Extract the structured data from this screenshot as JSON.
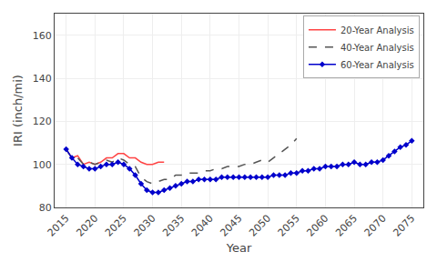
{
  "chart_data": {
    "type": "line",
    "xlabel": "Year",
    "ylabel": "IRI (inch/mi)",
    "xlim": [
      2013,
      2077
    ],
    "ylim": [
      80,
      170
    ],
    "xticks": [
      2015,
      2020,
      2025,
      2030,
      2035,
      2040,
      2045,
      2050,
      2055,
      2060,
      2065,
      2070,
      2075
    ],
    "yticks": [
      80,
      100,
      120,
      140,
      160
    ],
    "grid": true,
    "legend": "upper right",
    "series": [
      {
        "name": "20-Year Analysis",
        "color": "#ff4444",
        "line_style": "solid",
        "x": [
          2015,
          2016,
          2017,
          2018,
          2019,
          2020,
          2021,
          2022,
          2023,
          2024,
          2025,
          2026,
          2027,
          2028,
          2029,
          2030,
          2031,
          2032
        ],
        "values": [
          107,
          103,
          104,
          100,
          101,
          100,
          101,
          103,
          103,
          105,
          105,
          103,
          103,
          101,
          100,
          100,
          101,
          101
        ]
      },
      {
        "name": "40-Year Analysis",
        "color": "#555555",
        "line_style": "dashed",
        "x": [
          2015,
          2016,
          2017,
          2018,
          2019,
          2020,
          2021,
          2022,
          2023,
          2024,
          2025,
          2026,
          2027,
          2028,
          2029,
          2030,
          2031,
          2032,
          2033,
          2034,
          2035,
          2036,
          2037,
          2038,
          2039,
          2040,
          2041,
          2042,
          2043,
          2044,
          2045,
          2046,
          2047,
          2048,
          2049,
          2050,
          2051,
          2052,
          2053,
          2054,
          2055
        ],
        "values": [
          107,
          103,
          103,
          100,
          101,
          100,
          101,
          102,
          101,
          103,
          102,
          100,
          99,
          94,
          92,
          91,
          92,
          93,
          93,
          95,
          95,
          96,
          96,
          96,
          97,
          97,
          98,
          98,
          99,
          99,
          99,
          100,
          100,
          101,
          102,
          101,
          103,
          105,
          107,
          109,
          112
        ]
      },
      {
        "name": "60-Year Analysis",
        "color": "#0000cc",
        "line_style": "solid",
        "marker": "diamond",
        "x": [
          2015,
          2016,
          2017,
          2018,
          2019,
          2020,
          2021,
          2022,
          2023,
          2024,
          2025,
          2026,
          2027,
          2028,
          2029,
          2030,
          2031,
          2032,
          2033,
          2034,
          2035,
          2036,
          2037,
          2038,
          2039,
          2040,
          2041,
          2042,
          2043,
          2044,
          2045,
          2046,
          2047,
          2048,
          2049,
          2050,
          2051,
          2052,
          2053,
          2054,
          2055,
          2056,
          2057,
          2058,
          2059,
          2060,
          2061,
          2062,
          2063,
          2064,
          2065,
          2066,
          2067,
          2068,
          2069,
          2070,
          2071,
          2072,
          2073,
          2074,
          2075
        ],
        "values": [
          107,
          103,
          100,
          99,
          98,
          98,
          99,
          100,
          100,
          101,
          100,
          98,
          95,
          91,
          88,
          87,
          87,
          88,
          89,
          90,
          91,
          92,
          92,
          93,
          93,
          93,
          93,
          94,
          94,
          94,
          94,
          94,
          94,
          94,
          94,
          94,
          95,
          95,
          95,
          96,
          96,
          97,
          97,
          98,
          98,
          99,
          99,
          99,
          100,
          100,
          101,
          100,
          100,
          101,
          101,
          102,
          104,
          106,
          108,
          109,
          111
        ]
      }
    ]
  }
}
